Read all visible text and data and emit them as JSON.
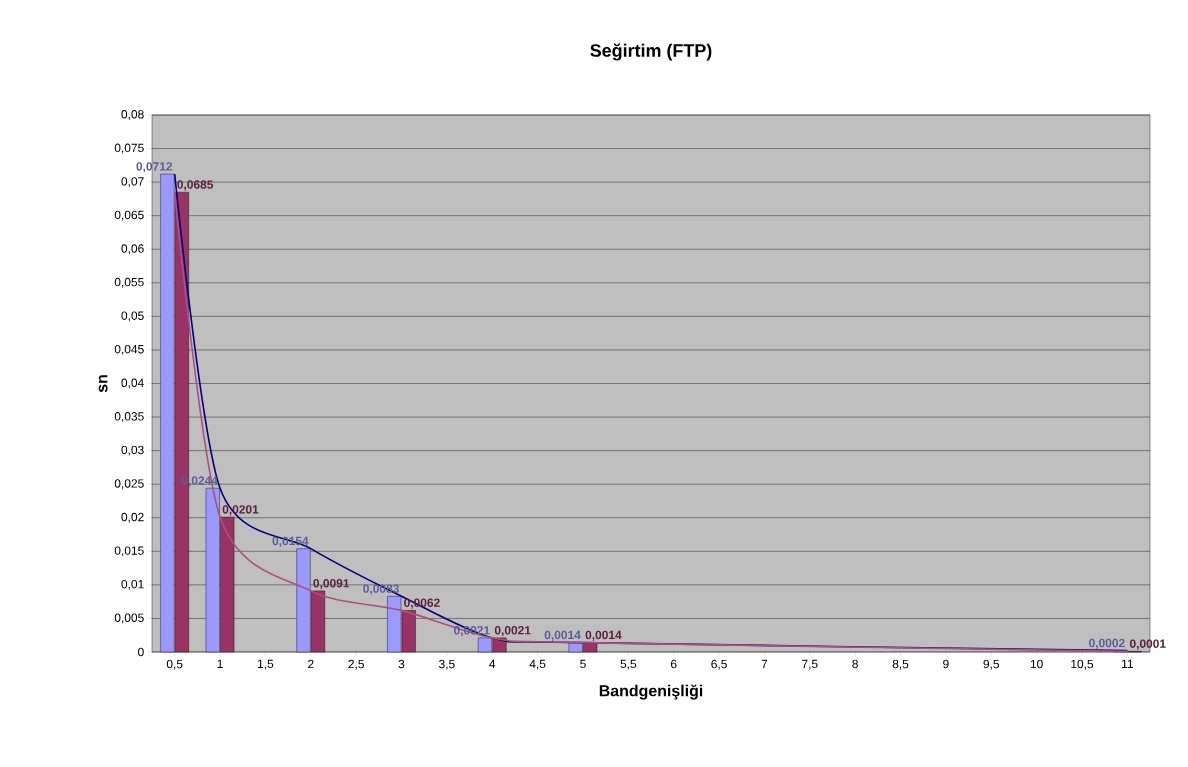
{
  "chart_data": {
    "type": "bar",
    "title": "Seğirtim (FTP)",
    "xlabel": "Bandgenişliği",
    "ylabel": "sn",
    "xlim": [
      0.25,
      11.25
    ],
    "xticks": [
      {
        "value": 0.5,
        "label": "0,5"
      },
      1,
      {
        "value": 1.5,
        "label": "1,5"
      },
      2,
      {
        "value": 2.5,
        "label": "2,5"
      },
      3,
      {
        "value": 3.5,
        "label": "3,5"
      },
      4,
      {
        "value": 4.5,
        "label": "4,5"
      },
      5,
      {
        "value": 5.5,
        "label": "5,5"
      },
      6,
      {
        "value": 6.5,
        "label": "6,5"
      },
      7,
      {
        "value": 7.5,
        "label": "7,5"
      },
      8,
      {
        "value": 8.5,
        "label": "8,5"
      },
      9,
      {
        "value": 9.5,
        "label": "9,5"
      },
      10,
      {
        "value": 10.5,
        "label": "10,5"
      },
      11
    ],
    "ylim": [
      0,
      0.08
    ],
    "yticks": [
      0,
      {
        "value": 0.005,
        "label": "0,005"
      },
      {
        "value": 0.01,
        "label": "0,01"
      },
      {
        "value": 0.015,
        "label": "0,015"
      },
      {
        "value": 0.02,
        "label": "0,02"
      },
      {
        "value": 0.025,
        "label": "0,025"
      },
      {
        "value": 0.03,
        "label": "0,03"
      },
      {
        "value": 0.035,
        "label": "0,035"
      },
      {
        "value": 0.04,
        "label": "0,04"
      },
      {
        "value": 0.045,
        "label": "0,045"
      },
      {
        "value": 0.05,
        "label": "0,05"
      },
      {
        "value": 0.055,
        "label": "0,055"
      },
      {
        "value": 0.06,
        "label": "0,06"
      },
      {
        "value": 0.065,
        "label": "0,065"
      },
      {
        "value": 0.07,
        "label": "0,07"
      },
      {
        "value": 0.075,
        "label": "0,075"
      },
      {
        "value": 0.08,
        "label": "0,08"
      }
    ],
    "grid": "y",
    "series": [
      {
        "color": "#9999ff",
        "x": [
          0.5,
          1,
          2,
          3,
          4,
          5,
          11
        ],
        "values": [
          0.0712,
          0.0244,
          0.0154,
          0.0083,
          0.0021,
          0.0014,
          0.0002
        ],
        "value_labels": [
          "0,0712",
          "0,0244",
          "0,0154",
          "0,0083",
          "0,0021",
          "0,0014",
          "0,0002"
        ]
      },
      {
        "color": "#993366",
        "x": [
          0.5,
          1,
          2,
          3,
          4,
          5,
          11
        ],
        "values": [
          0.0685,
          0.0201,
          0.0091,
          0.0062,
          0.0021,
          0.0014,
          0.0001
        ],
        "value_labels": [
          "0,0685",
          "0,0201",
          "0,0091",
          "0,0062",
          "0,0021",
          "0,0014",
          "0,0001"
        ]
      },
      {
        "type": "line",
        "color": "#000080",
        "x": [
          0.5,
          1,
          2,
          3,
          4,
          5,
          11
        ],
        "values": [
          0.0712,
          0.0244,
          0.0154,
          0.0083,
          0.0021,
          0.0014,
          0.0002
        ]
      },
      {
        "type": "line",
        "color": "#b0507a",
        "x": [
          0.5,
          1,
          2,
          3,
          4,
          5,
          11
        ],
        "values": [
          0.0685,
          0.0201,
          0.0091,
          0.0062,
          0.0021,
          0.0014,
          0.0001
        ]
      }
    ]
  }
}
